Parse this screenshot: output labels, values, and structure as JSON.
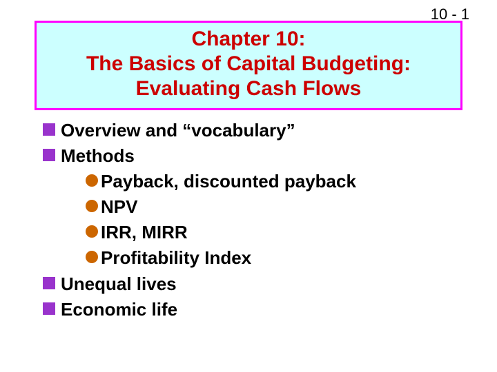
{
  "page_number": "10 - 1",
  "title": {
    "line1": "Chapter 10:",
    "line2": "The Basics of Capital Budgeting:",
    "line3": "Evaluating Cash Flows",
    "text_color": "#cc0000",
    "background_color": "#ccffff",
    "border_color": "#ff00ff"
  },
  "bullets": {
    "square_color": "#9933cc",
    "circle_color": "#cc6600",
    "items": {
      "b1": "Overview and “vocabulary”",
      "b2": "Methods",
      "b2_1": "Payback, discounted payback",
      "b2_2": "NPV",
      "b2_3": "IRR, MIRR",
      "b2_4": "Profitability Index",
      "b3": "Unequal lives",
      "b4": "Economic life"
    }
  },
  "colors": {
    "background": "#ffffff",
    "body_text": "#000000"
  }
}
